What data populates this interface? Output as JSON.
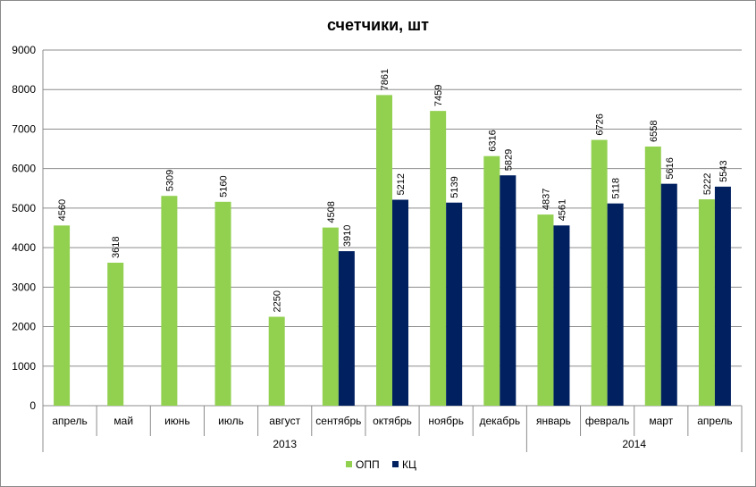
{
  "chart_data": {
    "type": "bar",
    "title": "счетчики, шт",
    "categories": [
      "апрель",
      "май",
      "июнь",
      "июль",
      "август",
      "сентябрь",
      "октябрь",
      "ноябрь",
      "декабрь",
      "январь",
      "февраль",
      "март",
      "апрель"
    ],
    "groups": [
      {
        "label": "2013",
        "start": 0,
        "end": 8
      },
      {
        "label": "2014",
        "start": 9,
        "end": 12
      }
    ],
    "series": [
      {
        "name": "ОПП",
        "color": "#92d050",
        "values": [
          4560,
          3618,
          5309,
          5160,
          2250,
          4508,
          7861,
          7459,
          6316,
          4837,
          6726,
          6558,
          5222
        ]
      },
      {
        "name": "КЦ",
        "color": "#002060",
        "values": [
          null,
          null,
          null,
          null,
          null,
          3910,
          5212,
          5139,
          5829,
          4561,
          5118,
          5616,
          5543
        ]
      }
    ],
    "ylim": [
      0,
      9000
    ],
    "yticks": [
      0,
      1000,
      2000,
      3000,
      4000,
      5000,
      6000,
      7000,
      8000,
      9000
    ],
    "grid": true,
    "gridColor": "#8c8c8c",
    "legend_position": "bottom"
  }
}
